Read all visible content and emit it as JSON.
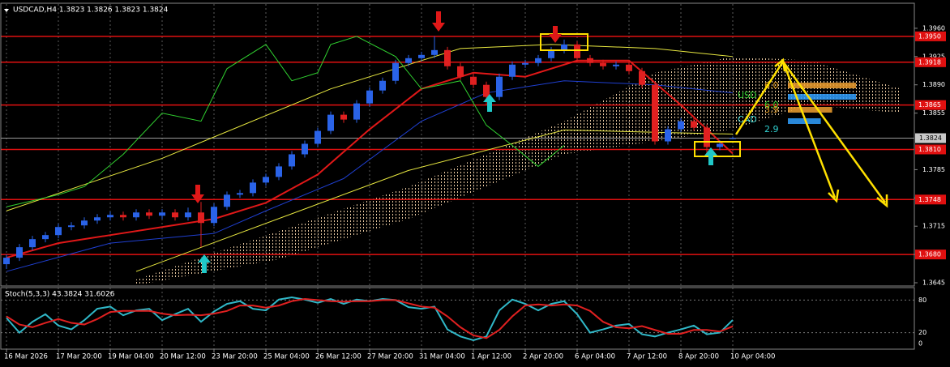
{
  "chart_data": {
    "type": "candlestick",
    "title": "USDCAD,H4 1.3823 1.3826 1.3823 1.3824",
    "ylim": [
      1.3642,
      1.399
    ],
    "yticks": [
      {
        "value": 1.396,
        "label": "1.3960"
      },
      1.3925,
      {
        "value": 1.389,
        "label": "1.3890"
      },
      1.3855,
      1.3785,
      {
        "value": 1.375,
        "label": "1.3750"
      },
      1.3715,
      {
        "value": 1.368,
        "label": "1.3680"
      },
      1.3645
    ],
    "last_price": 1.3824,
    "levels": [
      {
        "value": 1.395,
        "label": "1.3950"
      },
      1.3918,
      1.3865,
      {
        "value": 1.381,
        "label": "1.3810"
      },
      1.3748,
      {
        "value": 1.368,
        "label": "1.3680"
      }
    ],
    "xlim": [
      -0.5,
      70
    ],
    "xticks": [
      {
        "value": 0,
        "label": "16 Mar 2026"
      },
      {
        "value": 4,
        "label": "17 Mar 20:00"
      },
      {
        "value": 8,
        "label": "19 Mar 04:00"
      },
      {
        "value": 12,
        "label": "20 Mar 12:00"
      },
      {
        "value": 16,
        "label": "23 Mar 20:00"
      },
      {
        "value": 20,
        "label": "25 Mar 04:00"
      },
      {
        "value": 24,
        "label": "26 Mar 12:00"
      },
      {
        "value": 28,
        "label": "27 Mar 20:00"
      },
      {
        "value": 32,
        "label": "31 Mar 04:00"
      },
      {
        "value": 36,
        "label": "1 Apr 12:00"
      },
      {
        "value": 40,
        "label": "2 Apr 20:00"
      },
      {
        "value": 44,
        "label": "6 Apr 04:00"
      },
      {
        "value": 48,
        "label": "7 Apr 12:00"
      },
      {
        "value": 52,
        "label": "8 Apr 20:00"
      },
      {
        "value": 56,
        "label": "10 Apr 04:00"
      }
    ],
    "up_color": "#2a63e8",
    "down_color": "#e02020",
    "ohlc": [
      [
        1.3668,
        1.368,
        1.3662,
        1.3676
      ],
      [
        1.3676,
        1.3693,
        1.3672,
        1.3689
      ],
      [
        1.3689,
        1.3703,
        1.3685,
        1.3699
      ],
      [
        1.3699,
        1.3708,
        1.3695,
        1.3704
      ],
      [
        1.3704,
        1.3718,
        1.37,
        1.3714
      ],
      [
        1.3714,
        1.372,
        1.371,
        1.3716
      ],
      [
        1.3716,
        1.3726,
        1.3712,
        1.3722
      ],
      [
        1.3722,
        1.373,
        1.3718,
        1.3726
      ],
      [
        1.3726,
        1.3733,
        1.3722,
        1.3729
      ],
      [
        1.3729,
        1.3733,
        1.3722,
        1.3726
      ],
      [
        1.3726,
        1.3736,
        1.3722,
        1.3732
      ],
      [
        1.3732,
        1.3736,
        1.3724,
        1.3728
      ],
      [
        1.3728,
        1.3736,
        1.3724,
        1.3732
      ],
      [
        1.3732,
        1.3736,
        1.3722,
        1.3726
      ],
      [
        1.3726,
        1.3738,
        1.3722,
        1.3732
      ],
      [
        1.3732,
        1.3745,
        1.3689,
        1.3719
      ],
      [
        1.3719,
        1.3743,
        1.3715,
        1.3739
      ],
      [
        1.3739,
        1.3758,
        1.3735,
        1.3754
      ],
      [
        1.3754,
        1.376,
        1.375,
        1.3756
      ],
      [
        1.3756,
        1.3773,
        1.3752,
        1.3769
      ],
      [
        1.3769,
        1.378,
        1.3765,
        1.3776
      ],
      [
        1.3776,
        1.3793,
        1.3772,
        1.3789
      ],
      [
        1.3789,
        1.3808,
        1.3785,
        1.3804
      ],
      [
        1.3804,
        1.3821,
        1.38,
        1.3817
      ],
      [
        1.3817,
        1.3837,
        1.3813,
        1.3833
      ],
      [
        1.3833,
        1.3857,
        1.3829,
        1.3853
      ],
      [
        1.3853,
        1.3857,
        1.3843,
        1.3847
      ],
      [
        1.3847,
        1.3871,
        1.3843,
        1.3867
      ],
      [
        1.3867,
        1.3887,
        1.3863,
        1.3883
      ],
      [
        1.3883,
        1.3899,
        1.3879,
        1.3895
      ],
      [
        1.3895,
        1.3921,
        1.3891,
        1.3917
      ],
      [
        1.3917,
        1.3927,
        1.3913,
        1.3923
      ],
      [
        1.3923,
        1.3931,
        1.3919,
        1.3927
      ],
      [
        1.3927,
        1.395,
        1.3923,
        1.3933
      ],
      [
        1.3933,
        1.3937,
        1.3909,
        1.3913
      ],
      [
        1.3913,
        1.3917,
        1.3896,
        1.39
      ],
      [
        1.39,
        1.3904,
        1.3886,
        1.389
      ],
      [
        1.389,
        1.3894,
        1.3865,
        1.3875
      ],
      [
        1.3875,
        1.3904,
        1.3871,
        1.39
      ],
      [
        1.39,
        1.3919,
        1.3896,
        1.3915
      ],
      [
        1.3915,
        1.3921,
        1.3911,
        1.3917
      ],
      [
        1.3917,
        1.3927,
        1.3913,
        1.3923
      ],
      [
        1.3923,
        1.3937,
        1.3919,
        1.3933
      ],
      [
        1.3933,
        1.3946,
        1.3929,
        1.394
      ],
      [
        1.394,
        1.3944,
        1.3919,
        1.3923
      ],
      [
        1.3923,
        1.3927,
        1.3913,
        1.3917
      ],
      [
        1.3917,
        1.3921,
        1.3909,
        1.3913
      ],
      [
        1.3913,
        1.3919,
        1.3909,
        1.3915
      ],
      [
        1.3915,
        1.3919,
        1.3903,
        1.3907
      ],
      [
        1.3907,
        1.3911,
        1.3886,
        1.389
      ],
      [
        1.389,
        1.3894,
        1.3816,
        1.382
      ],
      [
        1.382,
        1.3839,
        1.3816,
        1.3835
      ],
      [
        1.3835,
        1.3849,
        1.3831,
        1.3845
      ],
      [
        1.3845,
        1.3849,
        1.3833,
        1.3837
      ],
      [
        1.3837,
        1.3841,
        1.3805,
        1.3813
      ],
      [
        1.3813,
        1.3821,
        1.3809,
        1.3817
      ],
      [
        1.3823,
        1.3826,
        1.3823,
        1.3824
      ]
    ],
    "overlays": [
      {
        "color": "#e01818",
        "width": 2,
        "x": [
          0,
          4,
          8,
          12,
          16,
          20,
          24,
          28,
          32,
          36,
          40,
          44,
          48,
          52,
          56
        ],
        "values": [
          1.3676,
          1.3694,
          1.3704,
          1.3714,
          1.3724,
          1.3744,
          1.3779,
          1.3835,
          1.3885,
          1.3905,
          1.39,
          1.392,
          1.392,
          1.3865,
          1.3805
        ]
      },
      {
        "color": "#1f3fd0",
        "width": 1,
        "x": [
          0,
          8,
          16,
          20,
          26,
          32,
          37,
          43,
          50,
          56
        ],
        "values": [
          1.3659,
          1.3694,
          1.3706,
          1.3734,
          1.3774,
          1.3845,
          1.388,
          1.3895,
          1.389,
          1.388
        ]
      },
      {
        "color": "#e8e840",
        "width": 1,
        "x": [
          0,
          12,
          25,
          35,
          42,
          50,
          56
        ],
        "values": [
          1.3734,
          1.3799,
          1.3885,
          1.3935,
          1.394,
          1.3935,
          1.3925
        ]
      },
      {
        "color": "#e8e840",
        "width": 1,
        "x": [
          10,
          31,
          43,
          56
        ],
        "values": [
          1.3659,
          1.3784,
          1.3834,
          1.3829
        ]
      },
      {
        "color": "#30d030",
        "width": 1,
        "x": [
          0,
          4,
          6,
          9,
          12,
          15,
          17,
          20,
          22,
          24,
          25,
          27,
          30,
          32,
          35,
          37,
          39,
          41,
          43
        ],
        "values": [
          1.3739,
          1.3754,
          1.3764,
          1.3804,
          1.3855,
          1.3845,
          1.391,
          1.394,
          1.3895,
          1.3905,
          1.394,
          1.395,
          1.3925,
          1.3885,
          1.3895,
          1.384,
          1.3815,
          1.3789,
          1.3815
        ]
      }
    ],
    "cloud": {
      "color": "#e8c8a0",
      "x": [
        10,
        21,
        31,
        37,
        43,
        50,
        56,
        62,
        69
      ],
      "upper": [
        1.3649,
        1.3709,
        1.3764,
        1.3804,
        1.3845,
        1.3905,
        1.3925,
        1.392,
        1.3885
      ],
      "lower": [
        1.3642,
        1.3674,
        1.3724,
        1.3764,
        1.3804,
        1.382,
        1.3835,
        1.3865,
        1.3855
      ]
    },
    "strength_meter": [
      {
        "name": "USD",
        "color": "#30d030",
        "values": [
          {
            "value": 6,
            "label": "6.0"
          },
          {
            "value": 6,
            "label": "6.0"
          }
        ]
      },
      {
        "name": "CAD",
        "color": "#30d0d0",
        "values": [
          {
            "value": 3.9,
            "label": "3.9"
          },
          {
            "value": 2.9,
            "label": "2.9"
          }
        ]
      }
    ],
    "indicator": {
      "type": "line",
      "title": "Stoch(5,3,3) 43.3824 31.6026",
      "ylim": [
        0,
        100
      ],
      "yticks": [
        80,
        20,
        0
      ],
      "series": [
        {
          "color": "#30b8c8",
          "values": [
            47,
            20,
            40,
            54,
            33,
            26,
            43,
            64,
            68,
            52,
            61,
            64,
            43,
            54,
            64,
            40,
            59,
            73,
            78,
            64,
            61,
            81,
            85,
            81,
            75,
            82,
            73,
            81,
            78,
            82,
            80,
            67,
            64,
            68,
            26,
            13,
            6,
            13,
            61,
            81,
            73,
            61,
            73,
            78,
            54,
            20,
            26,
            33,
            36,
            17,
            13,
            20,
            26,
            33,
            17,
            20,
            43.3824
          ]
        },
        {
          "color": "#e02020",
          "values": [
            50,
            35,
            30,
            38,
            45,
            38,
            35,
            45,
            58,
            60,
            60,
            60,
            55,
            52,
            53,
            52,
            55,
            60,
            70,
            70,
            66,
            70,
            78,
            82,
            80,
            78,
            77,
            78,
            78,
            80,
            80,
            74,
            68,
            66,
            50,
            30,
            15,
            10,
            25,
            50,
            70,
            72,
            70,
            72,
            70,
            60,
            40,
            30,
            28,
            32,
            25,
            18,
            18,
            25,
            25,
            22,
            31.6026
          ]
        }
      ]
    }
  }
}
